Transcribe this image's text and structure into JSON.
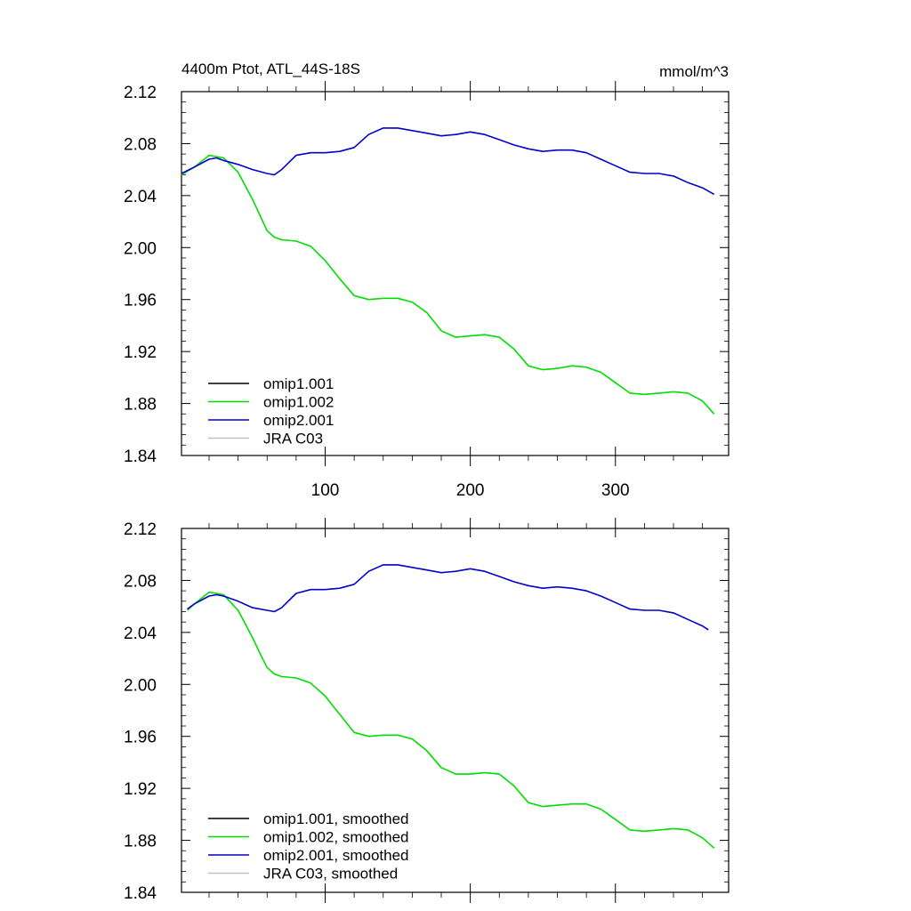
{
  "chart_data": [
    {
      "type": "line",
      "title": "4400m Ptot, ATL_44S-18S",
      "units": "mmol/m^3",
      "xlim": [
        1,
        378
      ],
      "ylim": [
        1.84,
        2.12
      ],
      "yticks": [
        "1.84",
        "1.88",
        "1.92",
        "1.96",
        "2.00",
        "2.04",
        "2.08",
        "2.12"
      ],
      "xticks": [
        "100",
        "200",
        "300"
      ],
      "grid": false,
      "legend_position": "bottom-left",
      "series": [
        {
          "name": "omip1.001",
          "color": "#000000",
          "x": [],
          "values": []
        },
        {
          "name": "omip1.002",
          "color": "#00dd00",
          "x": [
            1,
            10,
            20,
            30,
            40,
            50,
            55,
            60,
            65,
            70,
            80,
            90,
            100,
            110,
            120,
            130,
            140,
            150,
            160,
            170,
            180,
            190,
            200,
            210,
            220,
            230,
            240,
            250,
            260,
            270,
            280,
            290,
            300,
            310,
            320,
            330,
            340,
            350,
            360,
            368
          ],
          "values": [
            2.056,
            2.062,
            2.071,
            2.069,
            2.058,
            2.037,
            2.025,
            2.013,
            2.008,
            2.006,
            2.005,
            2.001,
            1.99,
            1.976,
            1.963,
            1.96,
            1.961,
            1.961,
            1.958,
            1.95,
            1.936,
            1.931,
            1.932,
            1.933,
            1.931,
            1.922,
            1.909,
            1.906,
            1.907,
            1.909,
            1.908,
            1.904,
            1.896,
            1.888,
            1.887,
            1.888,
            1.889,
            1.888,
            1.882,
            1.872
          ]
        },
        {
          "name": "omip2.001",
          "color": "#0000cc",
          "x": [
            1,
            10,
            20,
            25,
            30,
            40,
            50,
            60,
            65,
            70,
            80,
            90,
            100,
            110,
            120,
            130,
            140,
            150,
            160,
            170,
            180,
            190,
            200,
            210,
            220,
            230,
            240,
            250,
            260,
            270,
            280,
            290,
            300,
            310,
            320,
            330,
            340,
            350,
            360,
            368
          ],
          "values": [
            2.057,
            2.062,
            2.068,
            2.069,
            2.067,
            2.064,
            2.06,
            2.057,
            2.056,
            2.06,
            2.071,
            2.073,
            2.073,
            2.074,
            2.077,
            2.087,
            2.092,
            2.092,
            2.09,
            2.088,
            2.086,
            2.087,
            2.089,
            2.087,
            2.083,
            2.079,
            2.076,
            2.074,
            2.075,
            2.075,
            2.073,
            2.068,
            2.063,
            2.058,
            2.057,
            2.057,
            2.055,
            2.05,
            2.046,
            2.041
          ]
        },
        {
          "name": "JRA C03",
          "color": "#c0c0c0",
          "x": [],
          "values": []
        }
      ]
    },
    {
      "type": "line",
      "title": "",
      "units": "",
      "xlim": [
        1,
        378
      ],
      "ylim": [
        1.84,
        2.12
      ],
      "yticks": [
        "1.84",
        "1.88",
        "1.92",
        "1.96",
        "2.00",
        "2.04",
        "2.08",
        "2.12"
      ],
      "xticks": [],
      "grid": false,
      "legend_position": "bottom-left",
      "series": [
        {
          "name": "omip1.001, smoothed",
          "color": "#000000",
          "x": [],
          "values": []
        },
        {
          "name": "omip1.002, smoothed",
          "color": "#00dd00",
          "x": [
            5,
            10,
            20,
            30,
            40,
            50,
            55,
            60,
            65,
            70,
            80,
            90,
            100,
            110,
            120,
            130,
            140,
            150,
            160,
            170,
            180,
            190,
            200,
            210,
            220,
            230,
            240,
            250,
            260,
            270,
            280,
            290,
            300,
            310,
            320,
            330,
            340,
            350,
            360,
            368
          ],
          "values": [
            2.057,
            2.062,
            2.071,
            2.069,
            2.057,
            2.036,
            2.024,
            2.013,
            2.008,
            2.006,
            2.005,
            2.001,
            1.991,
            1.977,
            1.963,
            1.96,
            1.961,
            1.961,
            1.958,
            1.949,
            1.936,
            1.931,
            1.931,
            1.932,
            1.931,
            1.922,
            1.909,
            1.906,
            1.907,
            1.908,
            1.908,
            1.904,
            1.896,
            1.888,
            1.887,
            1.888,
            1.889,
            1.888,
            1.882,
            1.874
          ]
        },
        {
          "name": "omip2.001, smoothed",
          "color": "#0000cc",
          "x": [
            5,
            10,
            20,
            25,
            30,
            40,
            50,
            60,
            65,
            70,
            80,
            90,
            100,
            110,
            120,
            130,
            140,
            150,
            160,
            170,
            180,
            190,
            200,
            210,
            220,
            230,
            240,
            250,
            260,
            270,
            280,
            290,
            300,
            310,
            320,
            330,
            340,
            350,
            360,
            364
          ],
          "values": [
            2.058,
            2.062,
            2.068,
            2.069,
            2.068,
            2.064,
            2.059,
            2.057,
            2.056,
            2.059,
            2.07,
            2.073,
            2.073,
            2.074,
            2.077,
            2.087,
            2.092,
            2.092,
            2.09,
            2.088,
            2.086,
            2.087,
            2.089,
            2.087,
            2.083,
            2.079,
            2.076,
            2.074,
            2.075,
            2.074,
            2.072,
            2.068,
            2.063,
            2.058,
            2.057,
            2.057,
            2.055,
            2.05,
            2.045,
            2.042
          ]
        },
        {
          "name": "JRA C03, smoothed",
          "color": "#c0c0c0",
          "x": [],
          "values": []
        }
      ]
    }
  ]
}
